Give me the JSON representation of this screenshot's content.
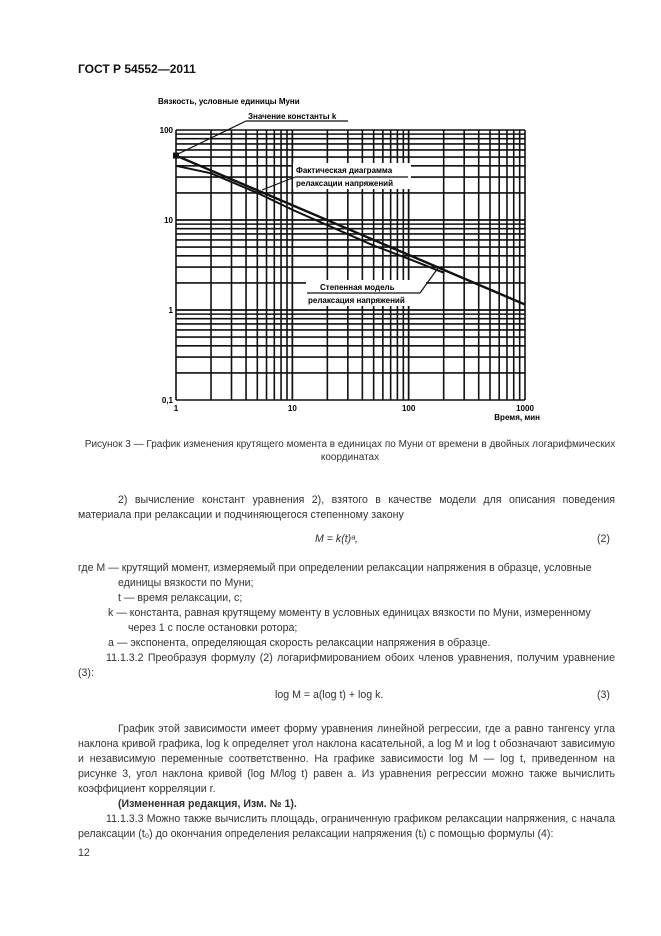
{
  "header": {
    "doc_id": "ГОСТ Р 54552—2011"
  },
  "figure": {
    "caption_line1": "Рисунок 3 — График изменения крутящего момента в единицах по Муни от времени в двойных логарифмических",
    "caption_line2": "координатах",
    "annotations": {
      "k_constant": "Значение константы k",
      "actual_line1": "Фактическая диаграмма",
      "actual_line2": "релаксации напряжений",
      "model_line1": "Степенная модель",
      "model_line2": "релаксация напряжений"
    }
  },
  "chart_data": {
    "type": "line",
    "xlabel": "Время, мин",
    "ylabel": "Вязкость, условные единицы Муни",
    "x_scale": "log",
    "y_scale": "log",
    "xlim": [
      1,
      1000
    ],
    "ylim": [
      0.1,
      100
    ],
    "x_ticks": [
      "1",
      "10",
      "100",
      "1000"
    ],
    "y_ticks": [
      "0,1",
      "1",
      "10",
      "100"
    ],
    "grid": true,
    "series": [
      {
        "name": "Степенная модель релаксация напряжений",
        "x": [
          1,
          1000
        ],
        "y": [
          52,
          1.15
        ],
        "color": "#111111"
      },
      {
        "name": "Фактическая диаграмма релаксации напряжений",
        "x": [
          1,
          2,
          5,
          10,
          50,
          100,
          200
        ],
        "y": [
          40,
          33,
          20,
          13,
          5.2,
          3.7,
          2.6
        ],
        "color": "#111111"
      }
    ]
  },
  "body": {
    "p1": "2) вычисление констант уравнения 2), взятого в качестве модели для описания поведения материала при релаксации и подчиняющегося степенному закону",
    "eq2": "M = k(t)ᵃ,",
    "eq2_num": "(2)",
    "def_M": "где M — крутящий момент, измеряемый при определении релаксации напряжения в образце, условные единицы вязкости по Муни;",
    "def_t": "t — время релаксации, с;",
    "def_k": "k — константа, равная крутящему моменту в условных единицах вязкости по Муни, измеренному через 1 с после остановки ротора;",
    "def_a": "a — экспонента, определяющая скорость релаксации напряжения в образце.",
    "p2": "11.1.3.2 Преобразуя формулу (2) логарифмированием обоих членов уравнения, получим уравнение (3):",
    "eq3": "log M = a(log t) + log k.",
    "eq3_num": "(3)",
    "p3": "График этой зависимости имеет форму уравнения линейной регрессии, где a равно тангенсу угла наклона кривой графика, log k определяет угол наклона касательной, a log M и log t обозначают зависимую и независимую переменные соответственно. На графике зависимости log M — log t, приведенном на рисунке 3, угол наклона кривой (log M/log t) равен a. Из уравнения регрессии можно также вычислить коэффициент корреляции r.",
    "amend": "(Измененная редакция, Изм. № 1).",
    "p4": "11.1.3.3 Можно также вычислить площадь, ограниченную графиком релаксации напряжения, с начала релаксации (t₀) до окончания определения релаксации напряжения (tᵢ) с помощью формулы (4):"
  },
  "footer": {
    "page_number": "12"
  }
}
